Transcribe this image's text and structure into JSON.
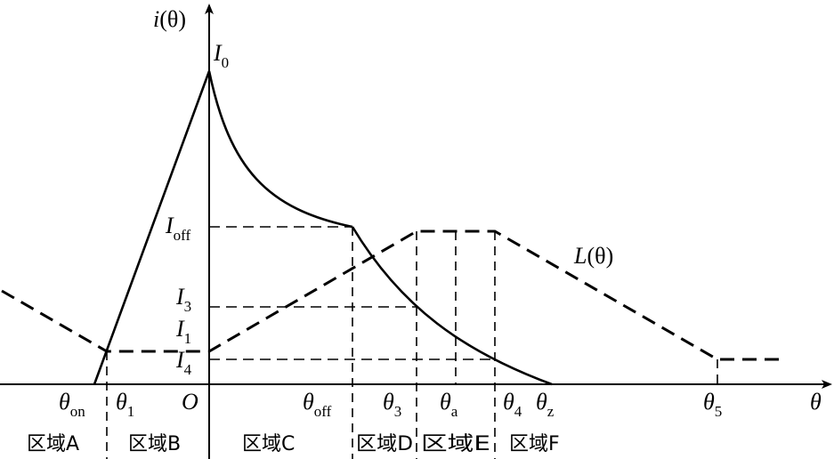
{
  "axes": {
    "y_symbol": "i",
    "y_arg": "(θ)",
    "x_symbol": "θ",
    "origin": "O"
  },
  "current_levels": {
    "I0": {
      "main": "I",
      "sub": "0"
    },
    "Ioff": {
      "main": "I",
      "sub": "off"
    },
    "I3": {
      "main": "I",
      "sub": "3"
    },
    "I1": {
      "main": "I",
      "sub": "1"
    },
    "I4": {
      "main": "I",
      "sub": "4"
    }
  },
  "inductance_label": {
    "symbol": "L",
    "arg": "(θ)"
  },
  "angles": {
    "theta_on": {
      "main": "θ",
      "sub": "on"
    },
    "theta_1": {
      "main": "θ",
      "sub": "1"
    },
    "theta_off": {
      "main": "θ",
      "sub": "off"
    },
    "theta_3": {
      "main": "θ",
      "sub": "3"
    },
    "theta_a": {
      "main": "θ",
      "sub": "a"
    },
    "theta_4": {
      "main": "θ",
      "sub": "4"
    },
    "theta_z": {
      "main": "θ",
      "sub": "z"
    },
    "theta_5": {
      "main": "θ",
      "sub": "5"
    }
  },
  "regions": [
    "区域A",
    "区域B",
    "区域C",
    "区域D",
    "区域E",
    "区域F"
  ]
}
